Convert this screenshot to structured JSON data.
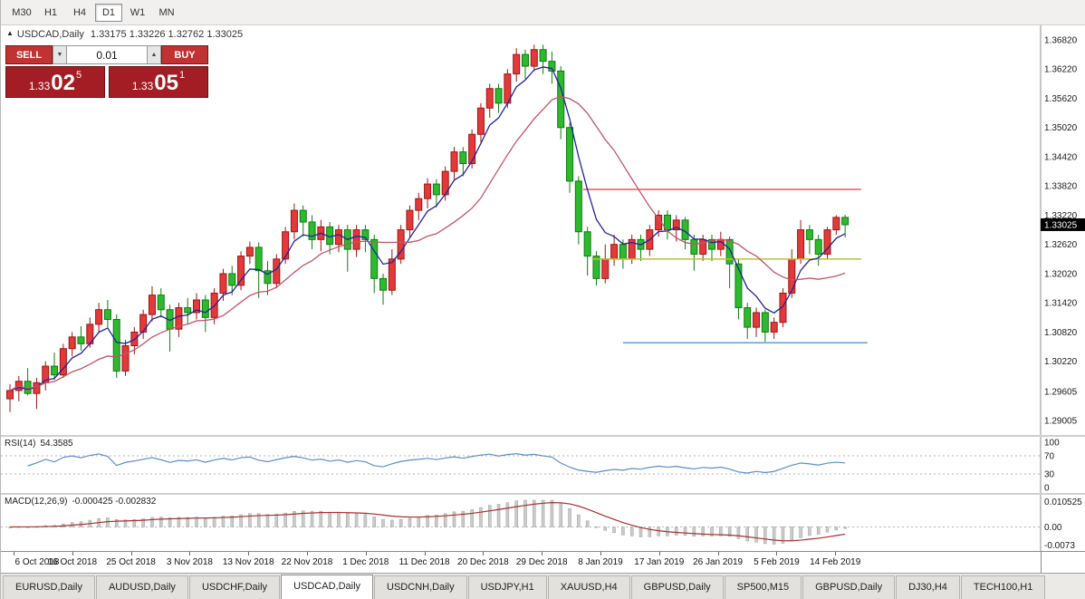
{
  "toolbar": {
    "timeframes": [
      {
        "label": "M30",
        "active": false
      },
      {
        "label": "H1",
        "active": false
      },
      {
        "label": "H4",
        "active": false
      },
      {
        "label": "D1",
        "active": true
      },
      {
        "label": "W1",
        "active": false
      },
      {
        "label": "MN",
        "active": false
      }
    ]
  },
  "chart": {
    "marker_icon": "▲",
    "title_symbol": "USDCAD,Daily",
    "title_ohlc": "1.33175 1.33226 1.32762 1.33025"
  },
  "trade": {
    "sell_label": "SELL",
    "buy_label": "BUY",
    "lot": "0.01",
    "lot_down_icon": "▼",
    "lot_up_icon": "▲",
    "sell_price": {
      "base": "1.33",
      "big": "02",
      "pip": "5"
    },
    "buy_price": {
      "base": "1.33",
      "big": "05",
      "pip": "1"
    }
  },
  "rsi_panel": {
    "name": "RSI(14)",
    "value": "54.3585"
  },
  "macd_panel": {
    "name": "MACD(12,26,9)",
    "value": "-0.000425 -0.002832"
  },
  "colors": {
    "bull_fill": "#e23a3a",
    "bull_border": "#9e1414",
    "bear_fill": "#2eb92e",
    "bear_border": "#0e7d0e",
    "ma_fast": "#22229a",
    "ma_slow": "#c05568",
    "axis_line": "#8c8c8c",
    "axis_text": "#1a1a1a",
    "level_dash": "#b5b5b5",
    "rsi_line": "#5a8fc8",
    "macd_hist_fill": "#cbcbcb",
    "macd_hist_border": "#9e9e9e",
    "macd_signal": "#a83030",
    "badge_bg": "#000000",
    "badge_text": "#ffffff",
    "hline_red": "#ff5050",
    "hline_yellow": "#bfbf30",
    "hline_blue": "#58a0dc"
  },
  "chart_data": {
    "type": "candlestick",
    "symbol": "USDCAD",
    "timeframe": "Daily",
    "last_price": 1.33025,
    "last_price_label": "1.33025",
    "y_range": [
      1.29005,
      1.3682
    ],
    "y_axis_labels": [
      "1.36820",
      "1.36220",
      "1.35620",
      "1.35020",
      "1.34420",
      "1.33820",
      "1.33220",
      "1.32620",
      "1.32020",
      "1.31420",
      "1.30820",
      "1.30220",
      "1.29605",
      "1.29005"
    ],
    "x_axis_labels": [
      "6 Oct 2018",
      "16 Oct 2018",
      "25 Oct 2018",
      "3 Nov 2018",
      "13 Nov 2018",
      "22 Nov 2018",
      "1 Dec 2018",
      "11 Dec 2018",
      "20 Dec 2018",
      "29 Dec 2018",
      "8 Jan 2019",
      "17 Jan 2019",
      "26 Jan 2019",
      "5 Feb 2019",
      "14 Feb 2019"
    ],
    "ohlc": [
      [
        1.2945,
        1.2975,
        1.2918,
        1.2962
      ],
      [
        1.2962,
        1.2992,
        1.294,
        1.2981
      ],
      [
        1.2981,
        1.3008,
        1.2952,
        1.2956
      ],
      [
        1.2956,
        1.2988,
        1.2924,
        1.2978
      ],
      [
        1.2978,
        1.3022,
        1.2962,
        1.3012
      ],
      [
        1.3012,
        1.304,
        1.2984,
        1.2994
      ],
      [
        1.2994,
        1.3058,
        1.2988,
        1.3048
      ],
      [
        1.3048,
        1.3082,
        1.3032,
        1.3072
      ],
      [
        1.3072,
        1.3094,
        1.3044,
        1.3058
      ],
      [
        1.3058,
        1.3112,
        1.305,
        1.3098
      ],
      [
        1.3098,
        1.3142,
        1.3082,
        1.3128
      ],
      [
        1.3128,
        1.3148,
        1.3092,
        1.3108
      ],
      [
        1.3108,
        1.3118,
        1.2988,
        1.3002
      ],
      [
        1.3002,
        1.3066,
        1.2992,
        1.3054
      ],
      [
        1.3054,
        1.3092,
        1.3036,
        1.3082
      ],
      [
        1.3082,
        1.3128,
        1.3068,
        1.3118
      ],
      [
        1.3118,
        1.3176,
        1.3104,
        1.3158
      ],
      [
        1.3158,
        1.3172,
        1.3112,
        1.3128
      ],
      [
        1.3128,
        1.3138,
        1.3042,
        1.3088
      ],
      [
        1.3088,
        1.3142,
        1.3072,
        1.3132
      ],
      [
        1.3132,
        1.3152,
        1.3098,
        1.3122
      ],
      [
        1.3122,
        1.3162,
        1.3108,
        1.3148
      ],
      [
        1.3148,
        1.3158,
        1.3082,
        1.3112
      ],
      [
        1.3112,
        1.3172,
        1.3098,
        1.3162
      ],
      [
        1.3162,
        1.3212,
        1.3146,
        1.3202
      ],
      [
        1.3202,
        1.3218,
        1.3158,
        1.3178
      ],
      [
        1.3178,
        1.3248,
        1.3168,
        1.3238
      ],
      [
        1.3238,
        1.3268,
        1.3222,
        1.3256
      ],
      [
        1.3256,
        1.3266,
        1.3152,
        1.3208
      ],
      [
        1.3208,
        1.3228,
        1.3158,
        1.3182
      ],
      [
        1.3182,
        1.3242,
        1.3172,
        1.3232
      ],
      [
        1.3232,
        1.3298,
        1.3222,
        1.3288
      ],
      [
        1.3288,
        1.3346,
        1.3272,
        1.3332
      ],
      [
        1.3332,
        1.3342,
        1.3278,
        1.3308
      ],
      [
        1.3308,
        1.3322,
        1.3252,
        1.3272
      ],
      [
        1.3272,
        1.3312,
        1.3248,
        1.3298
      ],
      [
        1.3298,
        1.3308,
        1.3242,
        1.3262
      ],
      [
        1.3262,
        1.3302,
        1.3246,
        1.3292
      ],
      [
        1.3292,
        1.3302,
        1.3206,
        1.3252
      ],
      [
        1.3252,
        1.3302,
        1.3236,
        1.3292
      ],
      [
        1.3292,
        1.3302,
        1.3246,
        1.3272
      ],
      [
        1.3272,
        1.3282,
        1.3162,
        1.3192
      ],
      [
        1.3192,
        1.3202,
        1.3138,
        1.3168
      ],
      [
        1.3168,
        1.3252,
        1.3158,
        1.3232
      ],
      [
        1.3232,
        1.3302,
        1.3222,
        1.3292
      ],
      [
        1.3292,
        1.3342,
        1.3276,
        1.3332
      ],
      [
        1.3332,
        1.3368,
        1.3312,
        1.3356
      ],
      [
        1.3356,
        1.3398,
        1.3336,
        1.3386
      ],
      [
        1.3386,
        1.3396,
        1.3338,
        1.3364
      ],
      [
        1.3364,
        1.3422,
        1.3352,
        1.3412
      ],
      [
        1.3412,
        1.3462,
        1.3396,
        1.3452
      ],
      [
        1.3452,
        1.3462,
        1.3402,
        1.3428
      ],
      [
        1.3428,
        1.3498,
        1.3418,
        1.3488
      ],
      [
        1.3488,
        1.3552,
        1.3472,
        1.3542
      ],
      [
        1.3542,
        1.3592,
        1.3522,
        1.3582
      ],
      [
        1.3582,
        1.3592,
        1.3532,
        1.3552
      ],
      [
        1.3552,
        1.3622,
        1.3542,
        1.3612
      ],
      [
        1.3612,
        1.3665,
        1.3596,
        1.3652
      ],
      [
        1.3652,
        1.3662,
        1.3602,
        1.3628
      ],
      [
        1.3628,
        1.3672,
        1.3618,
        1.3662
      ],
      [
        1.3662,
        1.3672,
        1.3612,
        1.3638
      ],
      [
        1.3638,
        1.3658,
        1.3592,
        1.3618
      ],
      [
        1.3618,
        1.3628,
        1.3478,
        1.3502
      ],
      [
        1.3502,
        1.3512,
        1.3368,
        1.3392
      ],
      [
        1.3392,
        1.3402,
        1.3262,
        1.3288
      ],
      [
        1.3288,
        1.3298,
        1.3198,
        1.3238
      ],
      [
        1.3238,
        1.3248,
        1.3178,
        1.3192
      ],
      [
        1.3192,
        1.3262,
        1.3182,
        1.3232
      ],
      [
        1.3232,
        1.3282,
        1.3218,
        1.3262
      ],
      [
        1.3262,
        1.3272,
        1.3212,
        1.3232
      ],
      [
        1.3232,
        1.3282,
        1.3222,
        1.3272
      ],
      [
        1.3272,
        1.3282,
        1.3228,
        1.3252
      ],
      [
        1.3252,
        1.3302,
        1.3238,
        1.3292
      ],
      [
        1.3292,
        1.3332,
        1.3278,
        1.3322
      ],
      [
        1.3322,
        1.3332,
        1.3272,
        1.3292
      ],
      [
        1.3292,
        1.3322,
        1.3268,
        1.3312
      ],
      [
        1.3312,
        1.3318,
        1.3252,
        1.3272
      ],
      [
        1.3272,
        1.3282,
        1.3208,
        1.3242
      ],
      [
        1.3242,
        1.3282,
        1.3228,
        1.3272
      ],
      [
        1.3272,
        1.3282,
        1.3228,
        1.3252
      ],
      [
        1.3252,
        1.3288,
        1.3238,
        1.3272
      ],
      [
        1.3272,
        1.3278,
        1.3172,
        1.3222
      ],
      [
        1.3222,
        1.3232,
        1.3108,
        1.3132
      ],
      [
        1.3132,
        1.3142,
        1.3068,
        1.3092
      ],
      [
        1.3092,
        1.3132,
        1.3072,
        1.3122
      ],
      [
        1.3122,
        1.3128,
        1.3062,
        1.3082
      ],
      [
        1.3082,
        1.3112,
        1.3068,
        1.3102
      ],
      [
        1.3102,
        1.3172,
        1.3092,
        1.3162
      ],
      [
        1.3162,
        1.3252,
        1.3152,
        1.3232
      ],
      [
        1.3232,
        1.3312,
        1.3222,
        1.3292
      ],
      [
        1.3292,
        1.3302,
        1.3242,
        1.3272
      ],
      [
        1.3272,
        1.3282,
        1.3218,
        1.3242
      ],
      [
        1.3242,
        1.3298,
        1.3232,
        1.3292
      ],
      [
        1.3292,
        1.3322,
        1.3282,
        1.33175
      ],
      [
        1.33175,
        1.33226,
        1.32762,
        1.33025
      ]
    ],
    "overlays": [
      {
        "type": "ma",
        "method": "ema",
        "period": 5,
        "color": "#22229a"
      },
      {
        "type": "ma",
        "method": "sma",
        "period": 13,
        "color": "#c05568"
      },
      {
        "type": "hline",
        "price": 1.3375,
        "from_index": 64.5,
        "to_index": 95.8,
        "color": "#ff5050"
      },
      {
        "type": "hline",
        "price": 1.3232,
        "from_index": 65.5,
        "to_index": 95.8,
        "color": "#bfbf30"
      },
      {
        "type": "hline",
        "price": 1.306,
        "from_index": 69.0,
        "to_index": 96.5,
        "color": "#58a0dc"
      }
    ],
    "subcharts": [
      {
        "type": "line",
        "name": "RSI(14)",
        "value": 54.3585,
        "range": [
          0,
          100
        ],
        "levels": [
          70,
          30
        ],
        "axis_labels": [
          "100",
          "70",
          "30",
          "0"
        ],
        "color": "#5a8fc8"
      },
      {
        "type": "macd",
        "name": "MACD(12,26,9)",
        "macd": -0.000425,
        "signal": -0.002832,
        "range": [
          -0.0073,
          0.010525
        ],
        "axis_labels": [
          "0.010525",
          "0.00",
          "-0.0073"
        ],
        "hist_color": "#cbcbcb",
        "signal_color": "#a83030"
      }
    ]
  },
  "tabs": [
    {
      "label": "EURUSD,Daily",
      "active": false
    },
    {
      "label": "AUDUSD,Daily",
      "active": false
    },
    {
      "label": "USDCHF,Daily",
      "active": false
    },
    {
      "label": "USDCAD,Daily",
      "active": true
    },
    {
      "label": "USDCNH,Daily",
      "active": false
    },
    {
      "label": "USDJPY,H1",
      "active": false
    },
    {
      "label": "XAUUSD,H4",
      "active": false
    },
    {
      "label": "GBPUSD,Daily",
      "active": false
    },
    {
      "label": "SP500,M15",
      "active": false
    },
    {
      "label": "GBPUSD,Daily",
      "active": false
    },
    {
      "label": "DJ30,H4",
      "active": false
    },
    {
      "label": "TECH100,H1",
      "active": false
    }
  ]
}
